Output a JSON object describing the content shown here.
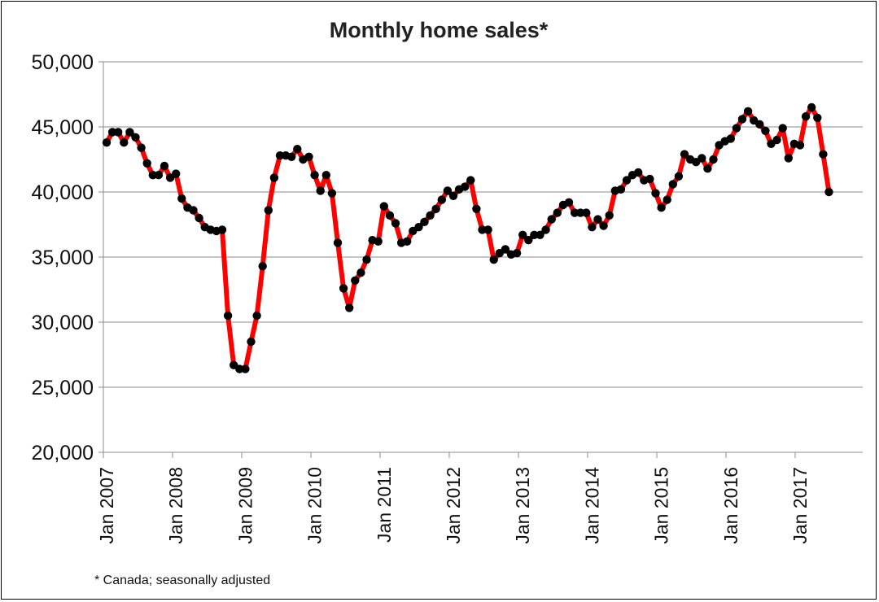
{
  "chart_data": {
    "type": "line",
    "title": "Monthly home sales*",
    "footnote": "* Canada; seasonally adjusted",
    "xlabel": "",
    "ylabel": "",
    "ylim": [
      20000,
      50000
    ],
    "yticks": [
      "20,000",
      "25,000",
      "30,000",
      "35,000",
      "40,000",
      "45,000",
      "50,000"
    ],
    "xticks": [
      "Jan 2007",
      "Jan 2008",
      "Jan 2009",
      "Jan 2010",
      "Jan 2011",
      "Jan 2012",
      "Jan 2013",
      "Jan 2014",
      "Jan 2015",
      "Jan 2016",
      "Jan 2017"
    ],
    "grid": true,
    "legend": "none",
    "series": [
      {
        "color": "#ff0000",
        "marker_color": "#000000",
        "values": [
          43800,
          44600,
          44600,
          43800,
          44600,
          44200,
          43400,
          42200,
          41300,
          41300,
          42000,
          41100,
          41400,
          39500,
          38800,
          38600,
          38000,
          37300,
          37100,
          37000,
          37100,
          30500,
          26700,
          26400,
          26400,
          28500,
          30500,
          34300,
          38600,
          41100,
          42800,
          42800,
          42700,
          43300,
          42500,
          42700,
          41300,
          40100,
          41300,
          39900,
          36100,
          32600,
          31100,
          33200,
          33800,
          34800,
          36300,
          36200,
          38900,
          38200,
          37600,
          36100,
          36200,
          37000,
          37300,
          37700,
          38200,
          38700,
          39400,
          40100,
          39700,
          40200,
          40400,
          40900,
          38700,
          37100,
          37100,
          34800,
          35300,
          35600,
          35200,
          35300,
          36700,
          36300,
          36700,
          36700,
          37100,
          37900,
          38400,
          39000,
          39200,
          38400,
          38400,
          38400,
          37300,
          37900,
          37400,
          38200,
          40100,
          40200,
          40900,
          41300,
          41500,
          40900,
          41000,
          39900,
          38800,
          39400,
          40600,
          41200,
          42900,
          42500,
          42300,
          42600,
          41800,
          42500,
          43600,
          43900,
          44100,
          44900,
          45600,
          46200,
          45500,
          45200,
          44700,
          43700,
          44000,
          44900,
          42600,
          43700,
          43600,
          45800,
          46500,
          45700,
          42900,
          40000
        ]
      }
    ]
  }
}
